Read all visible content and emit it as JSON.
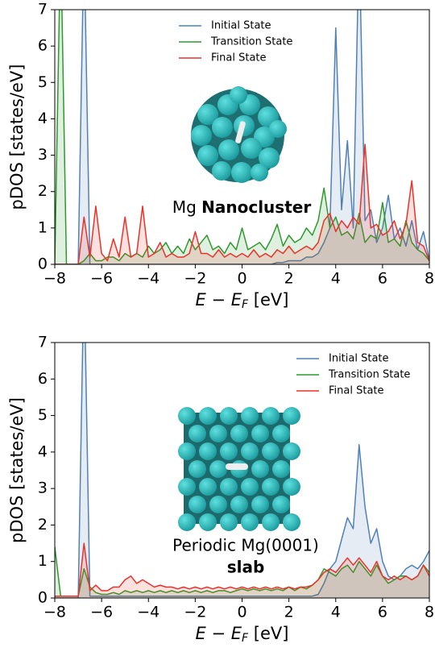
{
  "chart_data": [
    {
      "type": "line",
      "ylabel": "pDOS [states/eV]",
      "xlabel": {
        "main": "E − E",
        "sub": "F",
        "unit": " [eV]"
      },
      "annotations": [
        "Mg",
        "Nanocluster"
      ],
      "legend": "upper center",
      "fill": true,
      "xlim": [
        -8,
        8
      ],
      "ylim": [
        0,
        7
      ],
      "xticks": [
        {
          "value": -8,
          "label": "−8"
        },
        {
          "value": -6,
          "label": "−6"
        },
        {
          "value": -4,
          "label": "−4"
        },
        {
          "value": -2,
          "label": "−2"
        },
        0,
        2,
        4,
        6,
        8
      ],
      "yticks": [
        0,
        1,
        2,
        3,
        4,
        5,
        6,
        7
      ],
      "x": [
        -8,
        -7.75,
        -7.5,
        -7.25,
        -7,
        -6.75,
        -6.5,
        -6.25,
        -6,
        -5.75,
        -5.5,
        -5.25,
        -5,
        -4.75,
        -4.5,
        -4.25,
        -4,
        -3.75,
        -3.5,
        -3.25,
        -3,
        -2.75,
        -2.5,
        -2.25,
        -2,
        -1.75,
        -1.5,
        -1.25,
        -1,
        -0.75,
        -0.5,
        -0.25,
        0,
        0.25,
        0.5,
        0.75,
        1,
        1.25,
        1.5,
        1.75,
        2,
        2.25,
        2.5,
        2.75,
        3,
        3.25,
        3.5,
        3.75,
        4,
        4.25,
        4.5,
        4.75,
        5,
        5.25,
        5.5,
        5.75,
        6,
        6.25,
        6.5,
        6.75,
        7,
        7.25,
        7.5,
        7.75,
        8
      ],
      "series": [
        {
          "name": "Initial State",
          "color": "#4f81b8",
          "values": [
            0,
            0,
            0,
            0,
            0,
            9,
            0,
            0,
            0,
            0,
            0,
            0,
            0,
            0,
            0,
            0,
            0,
            0,
            0,
            0,
            0,
            0,
            0,
            0,
            0,
            0,
            0,
            0,
            0,
            0,
            0,
            0,
            0,
            0,
            0,
            0,
            0,
            0,
            0.05,
            0.05,
            0.1,
            0.1,
            0.1,
            0.2,
            0.2,
            0.3,
            0.6,
            1.0,
            6.5,
            1.5,
            3.4,
            1.0,
            9,
            1.2,
            1.5,
            0.6,
            1.0,
            1.9,
            0.7,
            1.0,
            0.5,
            1.2,
            0.4,
            0.9,
            0.1
          ]
        },
        {
          "name": "Transition State",
          "color": "#2e9a2e",
          "values": [
            0,
            9,
            0,
            0,
            0,
            0.1,
            0.3,
            0.1,
            0.1,
            0.2,
            0.2,
            0.1,
            0.3,
            0.2,
            0.3,
            0.2,
            0.5,
            0.3,
            0.4,
            0.6,
            0.3,
            0.5,
            0.3,
            0.7,
            0.4,
            0.6,
            0.8,
            0.4,
            0.5,
            0.3,
            0.6,
            0.4,
            1.0,
            0.4,
            0.5,
            0.6,
            0.4,
            0.7,
            1.1,
            0.5,
            0.8,
            0.6,
            0.7,
            1.0,
            0.8,
            1.2,
            2.1,
            1.0,
            1.3,
            0.8,
            0.9,
            0.7,
            1.4,
            0.6,
            0.8,
            0.7,
            1.7,
            0.6,
            0.7,
            0.5,
            1.2,
            0.6,
            0.4,
            0.3,
            0.1
          ]
        },
        {
          "name": "Final State",
          "color": "#e8332b",
          "values": [
            0,
            0,
            0,
            0,
            0,
            1.3,
            0.2,
            1.6,
            0.3,
            0.1,
            0.7,
            0.2,
            1.3,
            0.2,
            0.3,
            1.6,
            0.2,
            0.3,
            0.6,
            0.2,
            0.3,
            0.2,
            0.2,
            0.3,
            0.9,
            0.3,
            0.3,
            0.2,
            0.4,
            0.2,
            0.3,
            0.2,
            0.3,
            0.2,
            0.4,
            0.2,
            0.3,
            0.2,
            0.4,
            0.3,
            0.5,
            0.3,
            0.4,
            0.5,
            0.4,
            0.6,
            1.2,
            1.4,
            0.9,
            1.2,
            1.0,
            1.3,
            1.1,
            3.3,
            1.0,
            1.1,
            0.8,
            0.9,
            1.2,
            0.7,
            1.1,
            2.3,
            0.6,
            0.5,
            0.1
          ]
        }
      ]
    },
    {
      "type": "line",
      "ylabel": "pDOS [states/eV]",
      "xlabel": {
        "main": "E − E",
        "sub": "F",
        "unit": " [eV]"
      },
      "annotations": [
        "Periodic Mg(0001)",
        "slab"
      ],
      "legend": "upper right",
      "fill": true,
      "xlim": [
        -8,
        8
      ],
      "ylim": [
        0,
        7
      ],
      "xticks": [
        {
          "value": -8,
          "label": "−8"
        },
        {
          "value": -6,
          "label": "−6"
        },
        {
          "value": -4,
          "label": "−4"
        },
        {
          "value": -2,
          "label": "−2"
        },
        0,
        2,
        4,
        6,
        8
      ],
      "yticks": [
        0,
        1,
        2,
        3,
        4,
        5,
        6,
        7
      ],
      "x": [
        -8,
        -7.75,
        -7.5,
        -7.25,
        -7,
        -6.75,
        -6.5,
        -6.25,
        -6,
        -5.75,
        -5.5,
        -5.25,
        -5,
        -4.75,
        -4.5,
        -4.25,
        -4,
        -3.75,
        -3.5,
        -3.25,
        -3,
        -2.75,
        -2.5,
        -2.25,
        -2,
        -1.75,
        -1.5,
        -1.25,
        -1,
        -0.75,
        -0.5,
        -0.25,
        0,
        0.25,
        0.5,
        0.75,
        1,
        1.25,
        1.5,
        1.75,
        2,
        2.25,
        2.5,
        2.75,
        3,
        3.25,
        3.5,
        3.75,
        4,
        4.25,
        4.5,
        4.75,
        5,
        5.25,
        5.5,
        5.75,
        6,
        6.25,
        6.5,
        6.75,
        7,
        7.25,
        7.5,
        7.75,
        8
      ],
      "series": [
        {
          "name": "Initial State",
          "color": "#4f81b8",
          "values": [
            0,
            0,
            0,
            0,
            0,
            9,
            0.05,
            0.05,
            0.05,
            0.05,
            0.05,
            0.05,
            0.05,
            0.05,
            0.05,
            0.05,
            0.05,
            0.05,
            0.05,
            0.05,
            0.05,
            0.05,
            0.05,
            0.05,
            0.05,
            0.05,
            0.05,
            0.05,
            0.05,
            0.05,
            0.05,
            0.05,
            0.05,
            0.05,
            0.05,
            0.05,
            0.05,
            0.05,
            0.05,
            0.05,
            0.05,
            0.05,
            0.05,
            0.05,
            0.05,
            0.1,
            0.4,
            0.8,
            1.0,
            1.6,
            2.2,
            1.9,
            4.2,
            2.5,
            1.5,
            1.9,
            1.0,
            0.6,
            0.5,
            0.6,
            0.8,
            0.9,
            0.8,
            1.0,
            1.3
          ]
        },
        {
          "name": "Transition State",
          "color": "#2e9a2e",
          "values": [
            1.4,
            0.05,
            0.05,
            0.05,
            0.05,
            0.8,
            0.3,
            0.15,
            0.1,
            0.1,
            0.15,
            0.1,
            0.2,
            0.15,
            0.2,
            0.15,
            0.2,
            0.15,
            0.2,
            0.15,
            0.2,
            0.15,
            0.2,
            0.15,
            0.2,
            0.15,
            0.2,
            0.15,
            0.2,
            0.2,
            0.15,
            0.2,
            0.25,
            0.2,
            0.25,
            0.2,
            0.25,
            0.2,
            0.25,
            0.2,
            0.3,
            0.2,
            0.3,
            0.25,
            0.35,
            0.5,
            0.8,
            0.7,
            0.6,
            0.8,
            0.9,
            0.7,
            1.0,
            0.8,
            0.6,
            0.9,
            0.6,
            0.4,
            0.5,
            0.6,
            0.6,
            0.5,
            0.6,
            0.9,
            0.7
          ]
        },
        {
          "name": "Final State",
          "color": "#e8332b",
          "values": [
            0.05,
            0.05,
            0.05,
            0.05,
            0.05,
            1.5,
            0.2,
            0.35,
            0.2,
            0.2,
            0.3,
            0.3,
            0.5,
            0.6,
            0.4,
            0.5,
            0.4,
            0.3,
            0.35,
            0.3,
            0.3,
            0.25,
            0.3,
            0.25,
            0.3,
            0.25,
            0.3,
            0.25,
            0.3,
            0.25,
            0.3,
            0.25,
            0.3,
            0.25,
            0.3,
            0.25,
            0.3,
            0.25,
            0.3,
            0.25,
            0.3,
            0.25,
            0.3,
            0.3,
            0.35,
            0.5,
            0.7,
            0.8,
            0.7,
            0.9,
            1.1,
            0.9,
            1.1,
            0.9,
            0.7,
            1.0,
            0.6,
            0.5,
            0.6,
            0.5,
            0.6,
            0.5,
            0.6,
            0.9,
            0.6
          ]
        }
      ]
    }
  ]
}
